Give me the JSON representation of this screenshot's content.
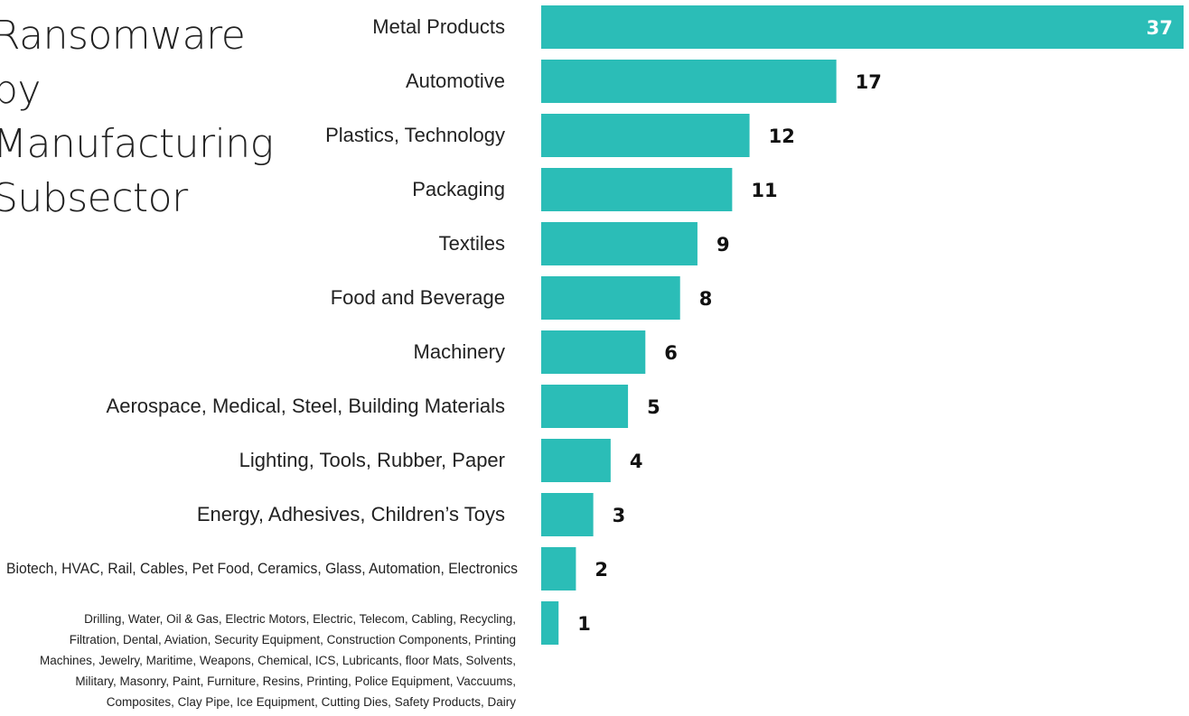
{
  "chart_data": {
    "type": "bar",
    "orientation": "horizontal",
    "title": "Ransomware by Manufacturing Subsector",
    "xlabel": "",
    "ylabel": "",
    "categories": [
      "Metal Products",
      "Automotive",
      "Plastics, Technology",
      "Packaging",
      "Textiles",
      "Food and Beverage",
      "Machinery",
      "Aerospace, Medical, Steel, Building Materials",
      "Lighting, Tools, Rubber, Paper",
      "Energy, Adhesives, Children’s Toys",
      "Biotech, HVAC, Rail, Cables, Pet Food, Ceramics, Glass, Automation, Electronics",
      "Drilling, Water, Oil & Gas, Electric Motors, Electric, Telecom, Cabling, Recycling, Filtration, Dental, Aviation, Security Equipment, Construction Components, Printing Machines, Jewelry, Maritime, Weapons, Chemical, ICS, Lubricants, floor Mats, Solvents, Military, Masonry, Paint, Furniture, Resins, Printing, Police Equipment, Vaccuums, Composites, Clay Pipe, Ice Equipment, Cutting Dies, Safety Products, Dairy"
    ],
    "values": [
      37,
      17,
      12,
      11,
      9,
      8,
      6,
      5,
      4,
      3,
      2,
      1
    ],
    "xlim": [
      0,
      37
    ],
    "grid": false,
    "bar_color": "#2bbdb7",
    "value_label_color": "#111111",
    "value_label_inside_color": "#ffffff"
  }
}
